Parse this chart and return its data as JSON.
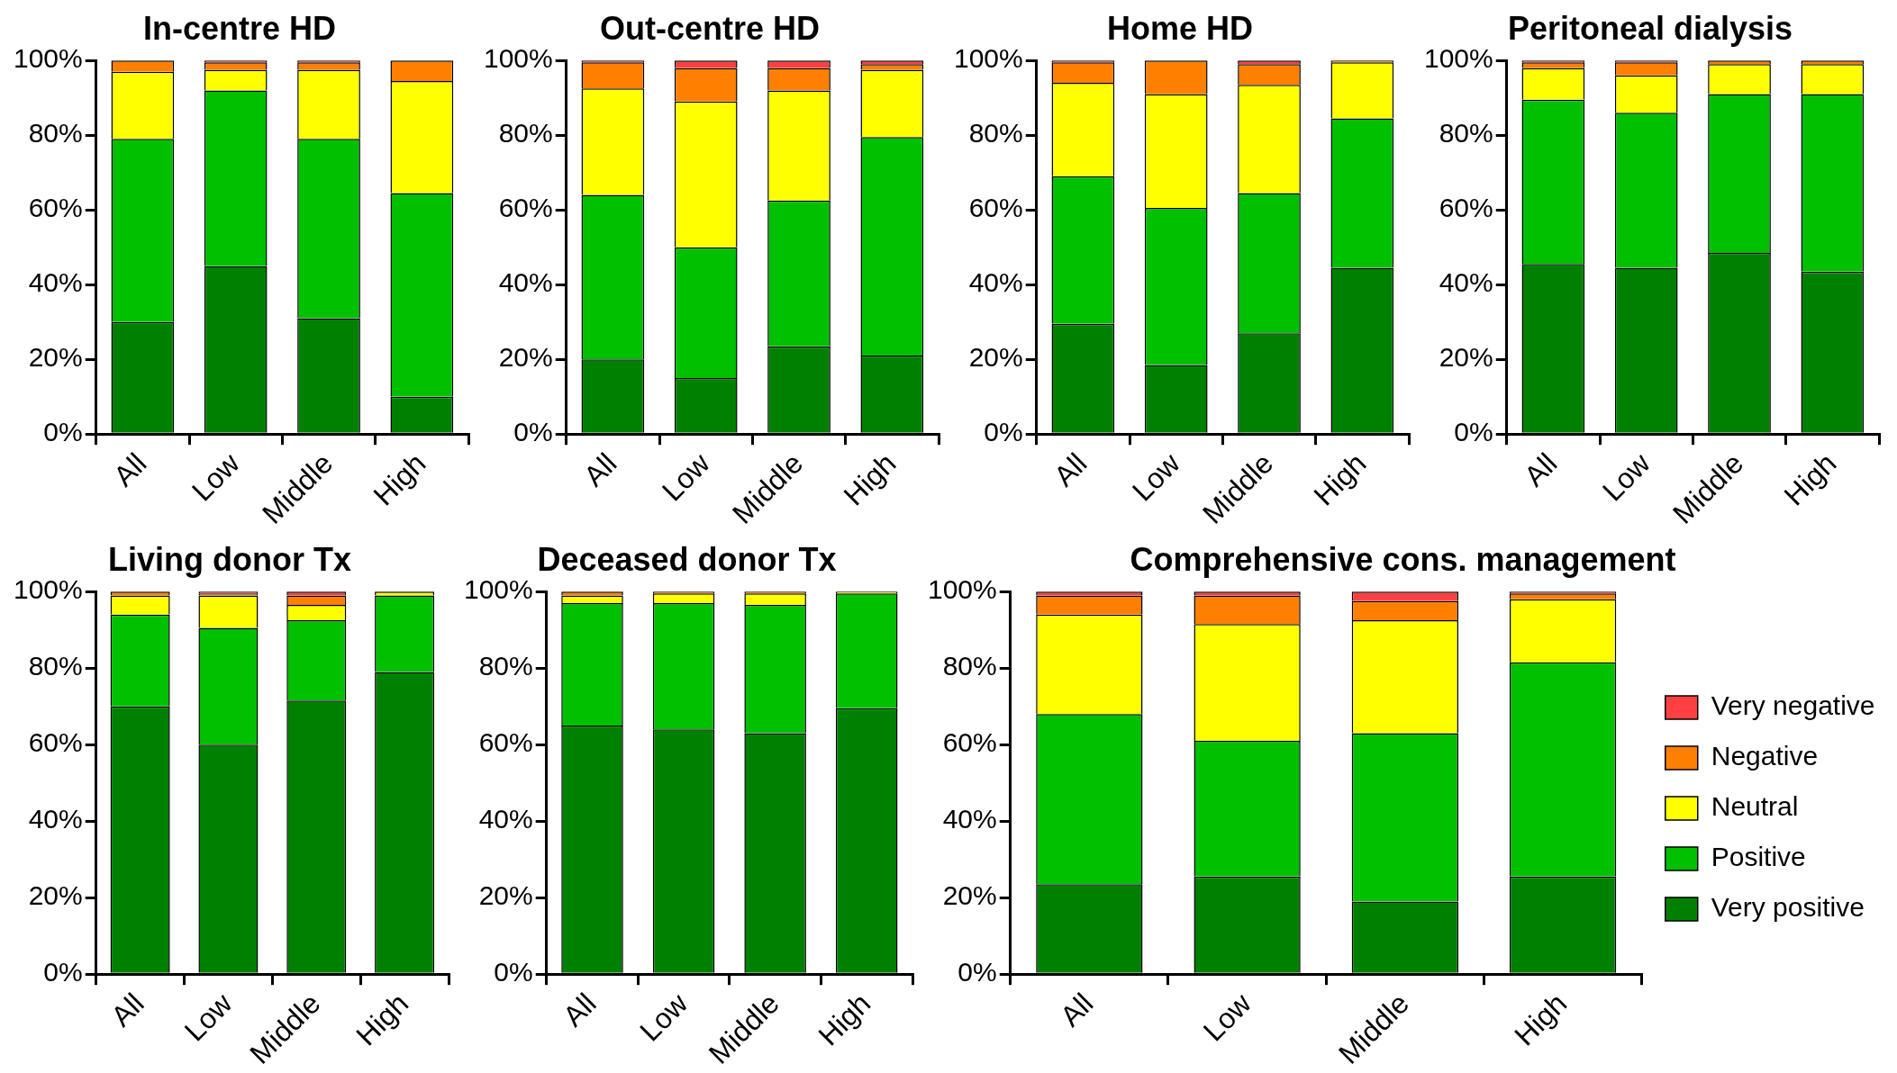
{
  "chart_data": [
    {
      "type": "bar",
      "title": "In-centre HD",
      "categories": [
        "All",
        "Low",
        "Middle",
        "High"
      ],
      "stacked": true,
      "ylim": [
        0,
        100
      ],
      "yticks": [
        {
          "value": 0,
          "label": "0%"
        },
        {
          "value": 20,
          "label": "20%"
        },
        {
          "value": 40,
          "label": "40%"
        },
        {
          "value": 60,
          "label": "60%"
        },
        {
          "value": 80,
          "label": "80%"
        },
        {
          "value": 100,
          "label": "100%"
        }
      ],
      "legend": false,
      "series": [
        {
          "color": "#008000",
          "values": [
            30,
            45,
            31,
            10
          ]
        },
        {
          "color": "#00c000",
          "values": [
            49,
            47,
            48,
            54.5
          ]
        },
        {
          "color": "#ffff00",
          "values": [
            18,
            5.5,
            18.5,
            30
          ]
        },
        {
          "color": "#ff8000",
          "values": [
            3,
            2,
            2,
            5.5
          ]
        },
        {
          "color": "#ff4040",
          "values": [
            0,
            0.5,
            0.5,
            0
          ]
        }
      ]
    },
    {
      "type": "bar",
      "title": "Out-centre HD",
      "categories": [
        "All",
        "Low",
        "Middle",
        "High"
      ],
      "stacked": true,
      "ylim": [
        0,
        100
      ],
      "yticks": [
        {
          "value": 0,
          "label": "0%"
        },
        {
          "value": 20,
          "label": "20%"
        },
        {
          "value": 40,
          "label": "40%"
        },
        {
          "value": 60,
          "label": "60%"
        },
        {
          "value": 80,
          "label": "80%"
        },
        {
          "value": 100,
          "label": "100%"
        }
      ],
      "legend": false,
      "series": [
        {
          "color": "#008000",
          "values": [
            20,
            15,
            23.5,
            21
          ]
        },
        {
          "color": "#00c000",
          "values": [
            44,
            35,
            39,
            58.5
          ]
        },
        {
          "color": "#ffff00",
          "values": [
            28.5,
            39,
            29.5,
            18
          ]
        },
        {
          "color": "#ff8000",
          "values": [
            7,
            9,
            6,
            1.5
          ]
        },
        {
          "color": "#ff4040",
          "values": [
            0.5,
            2,
            2,
            1
          ]
        }
      ]
    },
    {
      "type": "bar",
      "title": "Home HD",
      "categories": [
        "All",
        "Low",
        "Middle",
        "High"
      ],
      "stacked": true,
      "ylim": [
        0,
        100
      ],
      "yticks": [
        {
          "value": 0,
          "label": "0%"
        },
        {
          "value": 20,
          "label": "20%"
        },
        {
          "value": 40,
          "label": "40%"
        },
        {
          "value": 60,
          "label": "60%"
        },
        {
          "value": 80,
          "label": "80%"
        },
        {
          "value": 100,
          "label": "100%"
        }
      ],
      "legend": false,
      "series": [
        {
          "color": "#008000",
          "values": [
            29.5,
            18.5,
            27,
            44.5
          ]
        },
        {
          "color": "#00c000",
          "values": [
            39.5,
            42,
            37.5,
            40
          ]
        },
        {
          "color": "#ffff00",
          "values": [
            25,
            30.5,
            29,
            15
          ]
        },
        {
          "color": "#ff8000",
          "values": [
            5.5,
            9,
            5.5,
            0.5
          ]
        },
        {
          "color": "#ff4040",
          "values": [
            0.5,
            0,
            1,
            0
          ]
        }
      ]
    },
    {
      "type": "bar",
      "title": "Peritoneal dialysis",
      "categories": [
        "All",
        "Low",
        "Middle",
        "High"
      ],
      "stacked": true,
      "ylim": [
        0,
        100
      ],
      "yticks": [
        {
          "value": 0,
          "label": "0%"
        },
        {
          "value": 20,
          "label": "20%"
        },
        {
          "value": 40,
          "label": "40%"
        },
        {
          "value": 60,
          "label": "60%"
        },
        {
          "value": 80,
          "label": "80%"
        },
        {
          "value": 100,
          "label": "100%"
        }
      ],
      "legend": false,
      "series": [
        {
          "color": "#008000",
          "values": [
            45.5,
            44.5,
            48.5,
            43.5
          ]
        },
        {
          "color": "#00c000",
          "values": [
            44,
            41.5,
            42.5,
            47.5
          ]
        },
        {
          "color": "#ffff00",
          "values": [
            8.5,
            10,
            8,
            8
          ]
        },
        {
          "color": "#ff8000",
          "values": [
            1.5,
            3.5,
            1,
            1
          ]
        },
        {
          "color": "#ff4040",
          "values": [
            0.5,
            0.5,
            0,
            0
          ]
        }
      ]
    },
    {
      "type": "bar",
      "title": "Living donor Tx",
      "categories": [
        "All",
        "Low",
        "Middle",
        "High"
      ],
      "stacked": true,
      "ylim": [
        0,
        100
      ],
      "yticks": [
        {
          "value": 0,
          "label": "0%"
        },
        {
          "value": 20,
          "label": "20%"
        },
        {
          "value": 40,
          "label": "40%"
        },
        {
          "value": 60,
          "label": "60%"
        },
        {
          "value": 80,
          "label": "80%"
        },
        {
          "value": 100,
          "label": "100%"
        }
      ],
      "legend": false,
      "series": [
        {
          "color": "#008000",
          "values": [
            70,
            60,
            71.5,
            79
          ]
        },
        {
          "color": "#00c000",
          "values": [
            24,
            30.5,
            21,
            20
          ]
        },
        {
          "color": "#ffff00",
          "values": [
            5,
            8.5,
            4,
            1
          ]
        },
        {
          "color": "#ff8000",
          "values": [
            1,
            0.5,
            2.5,
            0
          ]
        },
        {
          "color": "#ff4040",
          "values": [
            0,
            0.5,
            1,
            0
          ]
        }
      ]
    },
    {
      "type": "bar",
      "title": "Deceased donor Tx",
      "categories": [
        "All",
        "Low",
        "Middle",
        "High"
      ],
      "stacked": true,
      "ylim": [
        0,
        100
      ],
      "yticks": [
        {
          "value": 0,
          "label": "0%"
        },
        {
          "value": 20,
          "label": "20%"
        },
        {
          "value": 40,
          "label": "40%"
        },
        {
          "value": 60,
          "label": "60%"
        },
        {
          "value": 80,
          "label": "80%"
        },
        {
          "value": 100,
          "label": "100%"
        }
      ],
      "legend": false,
      "series": [
        {
          "color": "#008000",
          "values": [
            65,
            64,
            63,
            69.5
          ]
        },
        {
          "color": "#00c000",
          "values": [
            32,
            33,
            33.5,
            30
          ]
        },
        {
          "color": "#ffff00",
          "values": [
            2,
            2.5,
            3,
            0.5
          ]
        },
        {
          "color": "#ff8000",
          "values": [
            1,
            0.5,
            0.5,
            0
          ]
        },
        {
          "color": "#ff4040",
          "values": [
            0,
            0,
            0,
            0
          ]
        }
      ]
    },
    {
      "type": "bar",
      "title": "Comprehensive cons. management",
      "categories": [
        "All",
        "Low",
        "Middle",
        "High"
      ],
      "stacked": true,
      "ylim": [
        0,
        100
      ],
      "yticks": [
        {
          "value": 0,
          "label": "0%"
        },
        {
          "value": 20,
          "label": "20%"
        },
        {
          "value": 40,
          "label": "40%"
        },
        {
          "value": 60,
          "label": "60%"
        },
        {
          "value": 80,
          "label": "80%"
        },
        {
          "value": 100,
          "label": "100%"
        }
      ],
      "legend": "right",
      "series": [
        {
          "name": "Very positive",
          "color": "#008000",
          "values": [
            23.5,
            25.5,
            19,
            25.5
          ]
        },
        {
          "name": "Positive",
          "color": "#00c000",
          "values": [
            44.5,
            35.5,
            44,
            56
          ]
        },
        {
          "name": "Neutral",
          "color": "#ffff00",
          "values": [
            26,
            30.5,
            29.5,
            16.5
          ]
        },
        {
          "name": "Negative",
          "color": "#ff8000",
          "values": [
            5,
            7.5,
            5,
            1.5
          ]
        },
        {
          "name": "Very negative",
          "color": "#ff4040",
          "values": [
            1,
            1,
            2.5,
            0.5
          ]
        }
      ]
    }
  ]
}
